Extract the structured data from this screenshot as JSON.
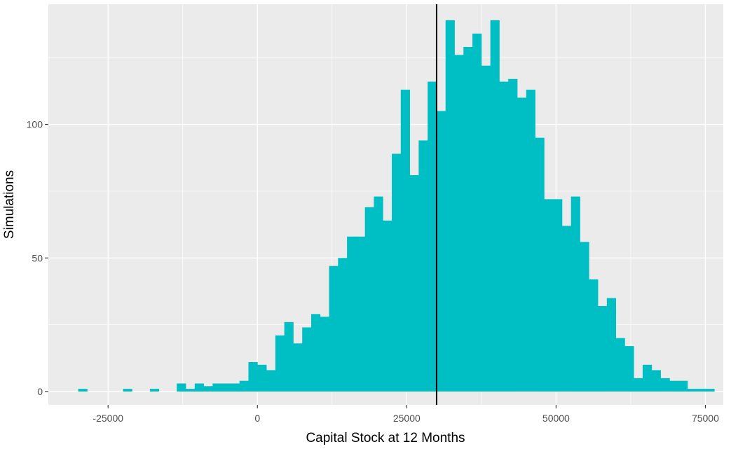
{
  "chart_data": {
    "type": "bar",
    "subtype": "histogram",
    "xlabel": "Capital Stock at 12 Months",
    "ylabel": "Simulations",
    "xlim": [
      -35000,
      78000
    ],
    "ylim": [
      -5,
      145
    ],
    "x_ticks": [
      {
        "value": -25000,
        "label": "-25000"
      },
      {
        "value": 0,
        "label": "0"
      },
      {
        "value": 25000,
        "label": "25000"
      },
      {
        "value": 50000,
        "label": "50000"
      },
      {
        "value": 75000,
        "label": "75000"
      }
    ],
    "y_ticks": [
      {
        "value": 0,
        "label": "0"
      },
      {
        "value": 50,
        "label": "50"
      },
      {
        "value": 100,
        "label": "100"
      }
    ],
    "grid": true,
    "bin_width": 1500,
    "bin_start": -30000,
    "counts": [
      1,
      0,
      0,
      0,
      0,
      1,
      0,
      0,
      1,
      0,
      0,
      3,
      1,
      3,
      2,
      3,
      3,
      3,
      4,
      11,
      10,
      8,
      21,
      26,
      18,
      24,
      29,
      28,
      47,
      50,
      58,
      58,
      69,
      73,
      64,
      89,
      113,
      81,
      94,
      116,
      105,
      139,
      126,
      129,
      134,
      122,
      139,
      116,
      117,
      110,
      113,
      95,
      72,
      72,
      62,
      73,
      56,
      42,
      32,
      35,
      20,
      17,
      5,
      10,
      8,
      5,
      4,
      4,
      1,
      1,
      1
    ],
    "vline": 30000,
    "bar_color": "#00BFC4",
    "panel_color": "#EBEBEB",
    "vline_color": "#000000"
  }
}
